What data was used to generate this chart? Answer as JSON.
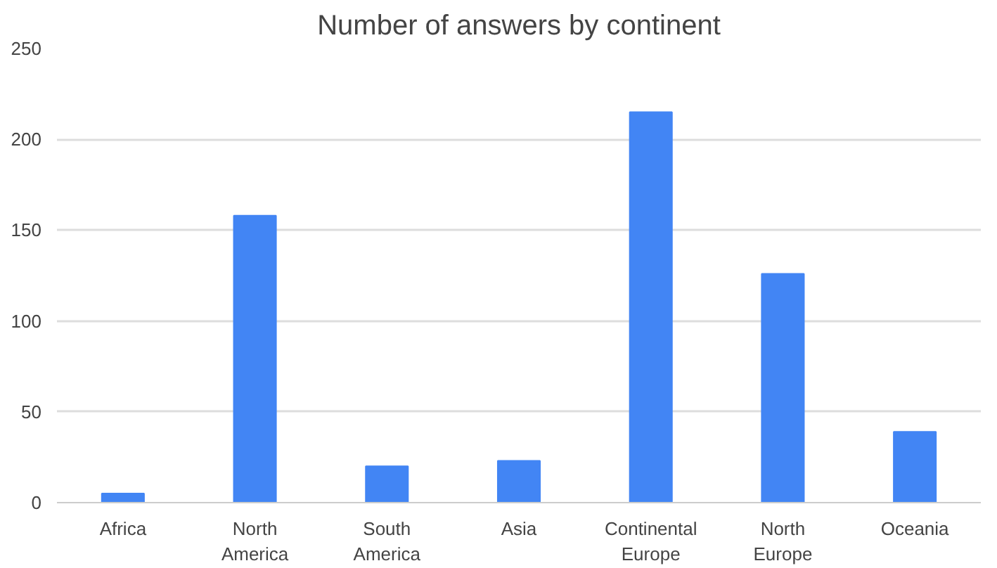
{
  "chart_data": {
    "type": "bar",
    "title": "Number of answers by continent",
    "categories": [
      "Africa",
      "North America",
      "South America",
      "Asia",
      "Continental Europe",
      "North Europe",
      "Oceania"
    ],
    "values": [
      5,
      158,
      20,
      23,
      215,
      126,
      39
    ],
    "color": "#4285f4",
    "ylim": [
      0,
      250
    ],
    "yticks": [
      0,
      50,
      100,
      150,
      200,
      250
    ],
    "grid": "y"
  }
}
